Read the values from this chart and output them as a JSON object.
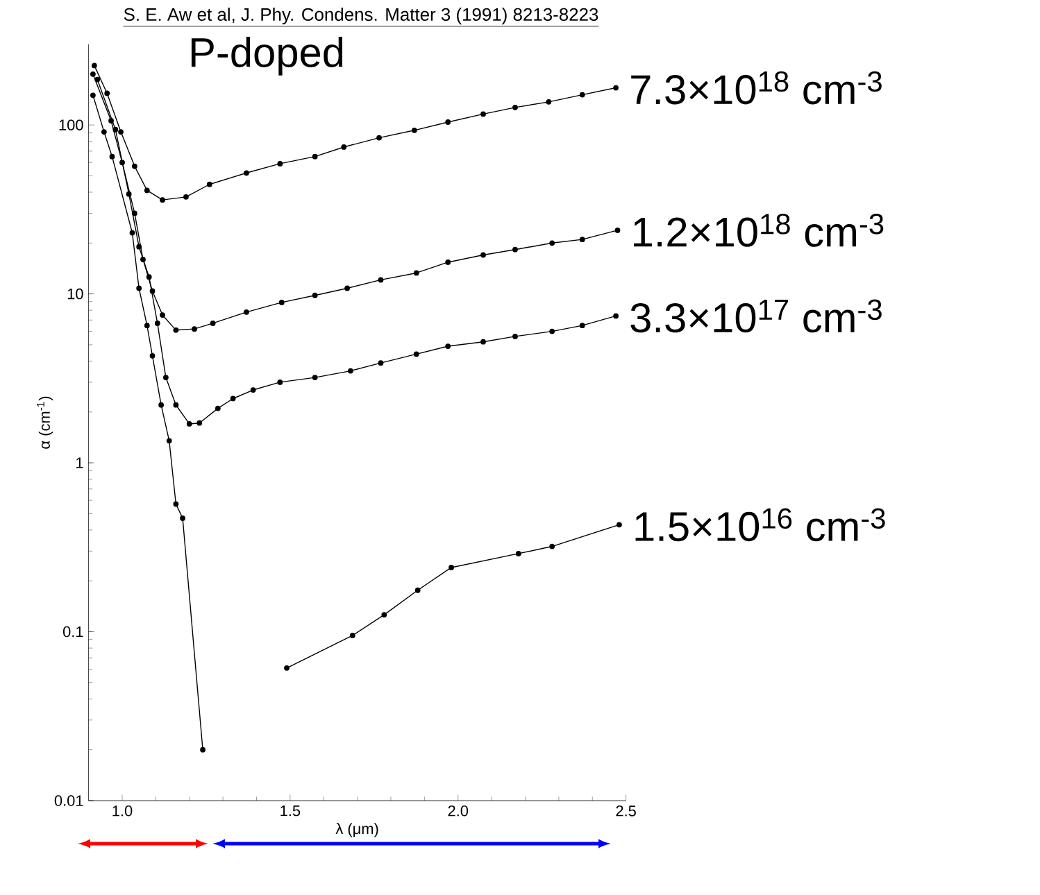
{
  "chart_data": {
    "type": "line",
    "xlabel": "λ (μm)",
    "ylabel": "α (cm$^{-1}$)",
    "annotations": [
      "S. E. Aw et al, J. Phy. Condens. Matter 3 (1991) 8213-8223",
      "P-doped"
    ],
    "log": "y",
    "xlim": [
      0.9,
      2.5
    ],
    "ylim": [
      0.01,
      300
    ],
    "xticks": [
      {
        "value": 1.0,
        "label": "1.0"
      },
      1.5,
      {
        "value": 2.0,
        "label": "2.0"
      },
      2.5
    ],
    "yticks": [
      0.01,
      0.1,
      1,
      10,
      100
    ],
    "grid": false,
    "legend": false,
    "marker": "circle",
    "line_style": "solid",
    "series": [
      {
        "name": "7.3×10$^{18}$ cm$^{-3}$",
        "color": "#000000",
        "x": [
          0.917,
          0.955,
          0.996,
          1.037,
          1.074,
          1.12,
          1.19,
          1.26,
          1.37,
          1.47,
          1.574,
          1.66,
          1.765,
          1.87,
          1.97,
          2.075,
          2.17,
          2.27,
          2.37,
          2.47
        ],
        "values": [
          225,
          154,
          91,
          57,
          41,
          36,
          37.5,
          44.5,
          52,
          59,
          65,
          74,
          84,
          93,
          104,
          116,
          127,
          137,
          151,
          166
        ]
      },
      {
        "name": "1.2×10$^{18}$ cm$^{-3}$",
        "color": "#000000",
        "x": [
          0.913,
          0.967,
          1.0,
          1.037,
          1.062,
          1.09,
          1.12,
          1.16,
          1.215,
          1.27,
          1.37,
          1.475,
          1.574,
          1.67,
          1.77,
          1.876,
          1.97,
          2.075,
          2.17,
          2.28,
          2.37,
          2.475
        ],
        "values": [
          200,
          106,
          60,
          30,
          16,
          10.4,
          7.5,
          6.1,
          6.2,
          6.7,
          7.8,
          8.9,
          9.8,
          10.8,
          12.1,
          13.3,
          15.4,
          17,
          18.3,
          20,
          21,
          23.8
        ]
      },
      {
        "name": "3.3×10$^{17}$ cm$^{-3}$",
        "color": "#000000",
        "x": [
          0.926,
          0.98,
          1.02,
          1.05,
          1.08,
          1.105,
          1.13,
          1.16,
          1.2,
          1.23,
          1.285,
          1.33,
          1.39,
          1.47,
          1.574,
          1.68,
          1.77,
          1.876,
          1.97,
          2.075,
          2.17,
          2.28,
          2.37,
          2.47
        ],
        "values": [
          186,
          94,
          39,
          19,
          12.6,
          6.7,
          3.2,
          2.2,
          1.7,
          1.72,
          2.1,
          2.4,
          2.7,
          3.0,
          3.2,
          3.5,
          3.9,
          4.4,
          4.9,
          5.2,
          5.6,
          6.0,
          6.5,
          7.4
        ]
      },
      {
        "name": "1.5×10$^{16}$ cm$^{-3}$",
        "color": "#000000",
        "x": [
          0.913,
          0.946,
          0.97,
          1.03,
          1.05,
          1.074,
          1.09,
          1.116,
          1.14,
          1.16,
          1.18,
          1.24,
          1.3,
          1.49,
          1.686,
          1.78,
          1.88,
          1.98,
          2.18,
          2.28,
          2.48
        ],
        "values": [
          150,
          91,
          65,
          23,
          10.8,
          6.5,
          4.3,
          2.2,
          1.35,
          0.57,
          0.47,
          0.02,
          null,
          0.061,
          0.095,
          0.126,
          0.176,
          0.24,
          0.29,
          0.32,
          0.43
        ]
      }
    ]
  }
}
